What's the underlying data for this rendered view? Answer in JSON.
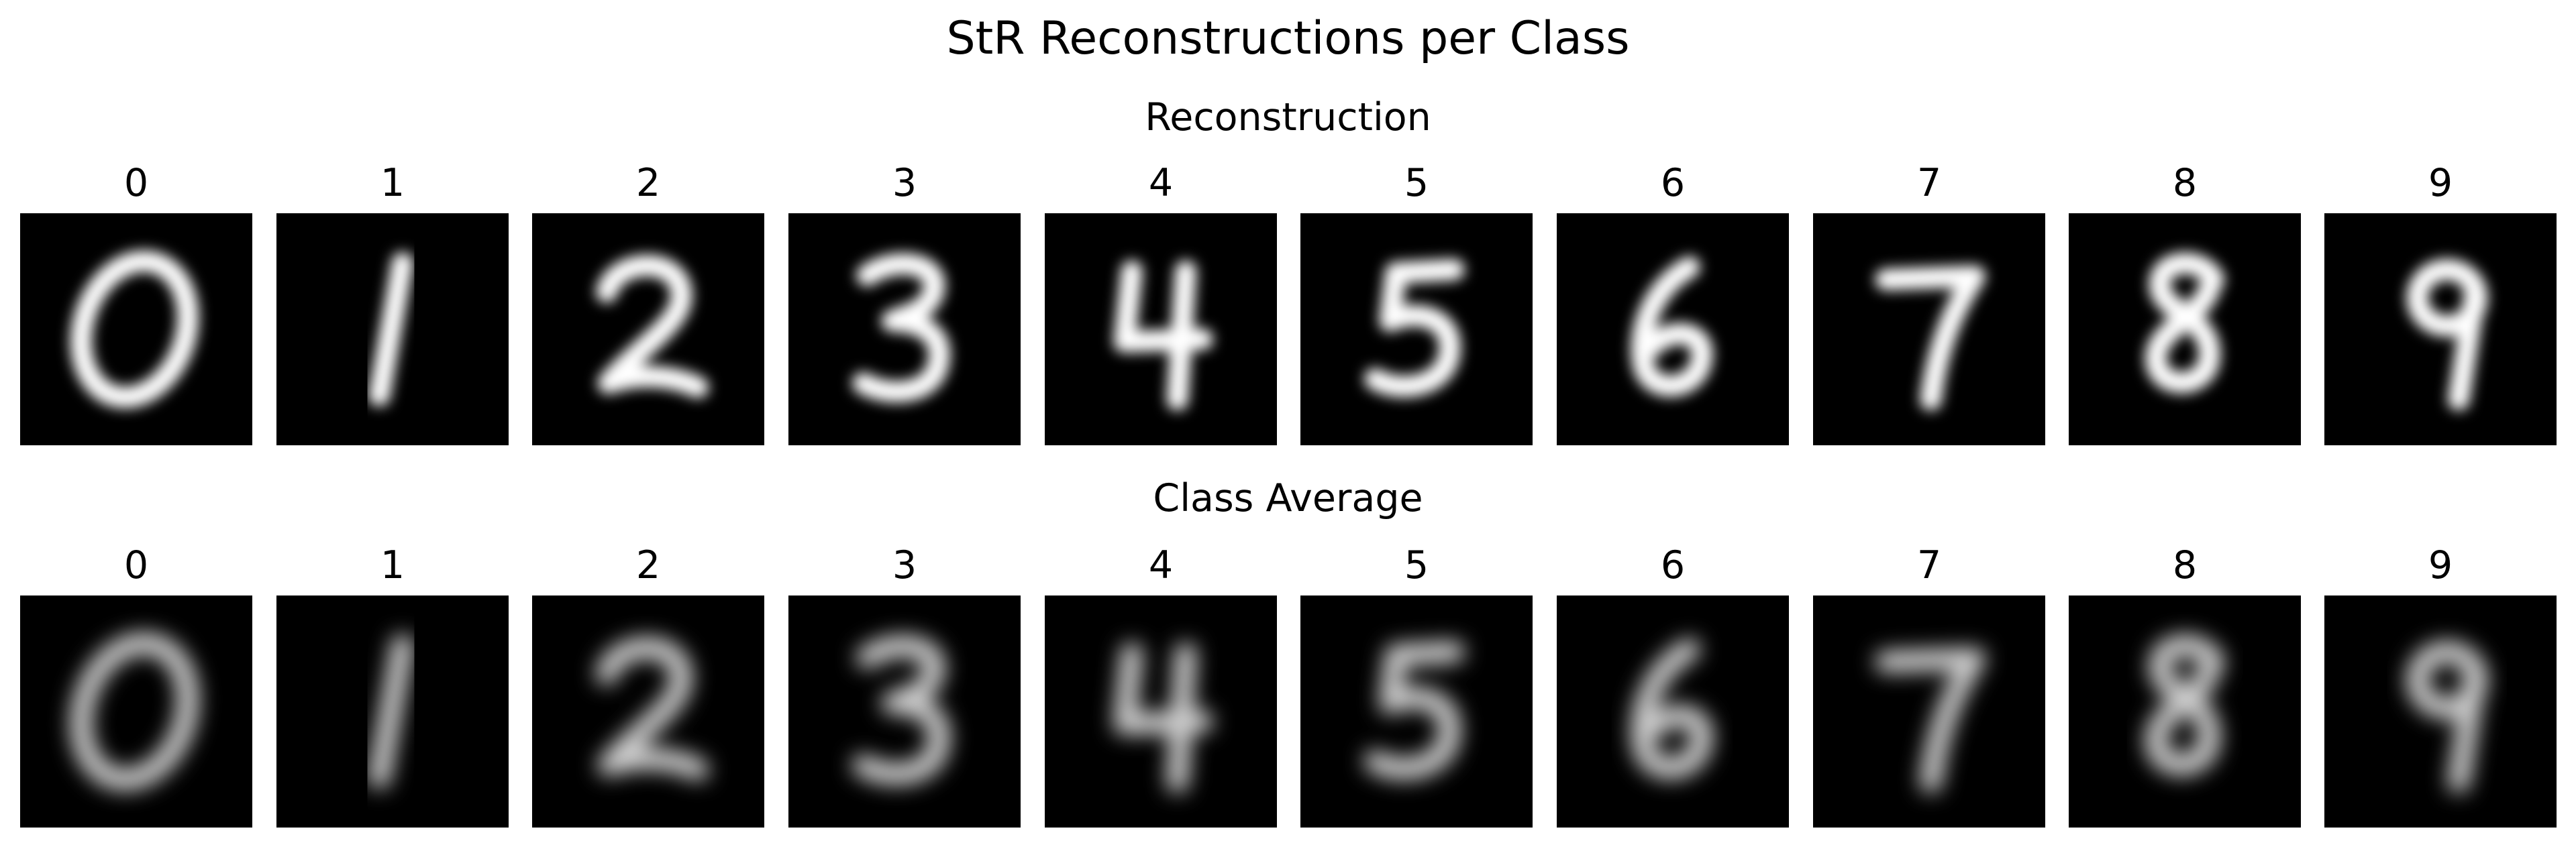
{
  "title": "StR Reconstructions per Class",
  "sections": [
    {
      "id": "recon",
      "title": "Reconstruction",
      "blur": 3.2,
      "brightness": 1.0,
      "digits": [
        {
          "label": "0",
          "glyph": "0"
        },
        {
          "label": "1",
          "glyph": "1"
        },
        {
          "label": "2",
          "glyph": "2"
        },
        {
          "label": "3",
          "glyph": "3"
        },
        {
          "label": "4",
          "glyph": "4"
        },
        {
          "label": "5",
          "glyph": "5"
        },
        {
          "label": "6",
          "glyph": "6"
        },
        {
          "label": "7",
          "glyph": "7"
        },
        {
          "label": "8",
          "glyph": "8"
        },
        {
          "label": "9",
          "glyph": "9"
        }
      ]
    },
    {
      "id": "avg",
      "title": "Class Average",
      "blur": 5.0,
      "brightness": 0.82,
      "digits": [
        {
          "label": "0",
          "glyph": "0"
        },
        {
          "label": "1",
          "glyph": "1"
        },
        {
          "label": "2",
          "glyph": "2"
        },
        {
          "label": "3",
          "glyph": "3"
        },
        {
          "label": "4",
          "glyph": "4"
        },
        {
          "label": "5",
          "glyph": "5"
        },
        {
          "label": "6",
          "glyph": "6"
        },
        {
          "label": "7",
          "glyph": "7"
        },
        {
          "label": "8",
          "glyph": "8"
        },
        {
          "label": "9",
          "glyph": "9"
        }
      ]
    }
  ]
}
